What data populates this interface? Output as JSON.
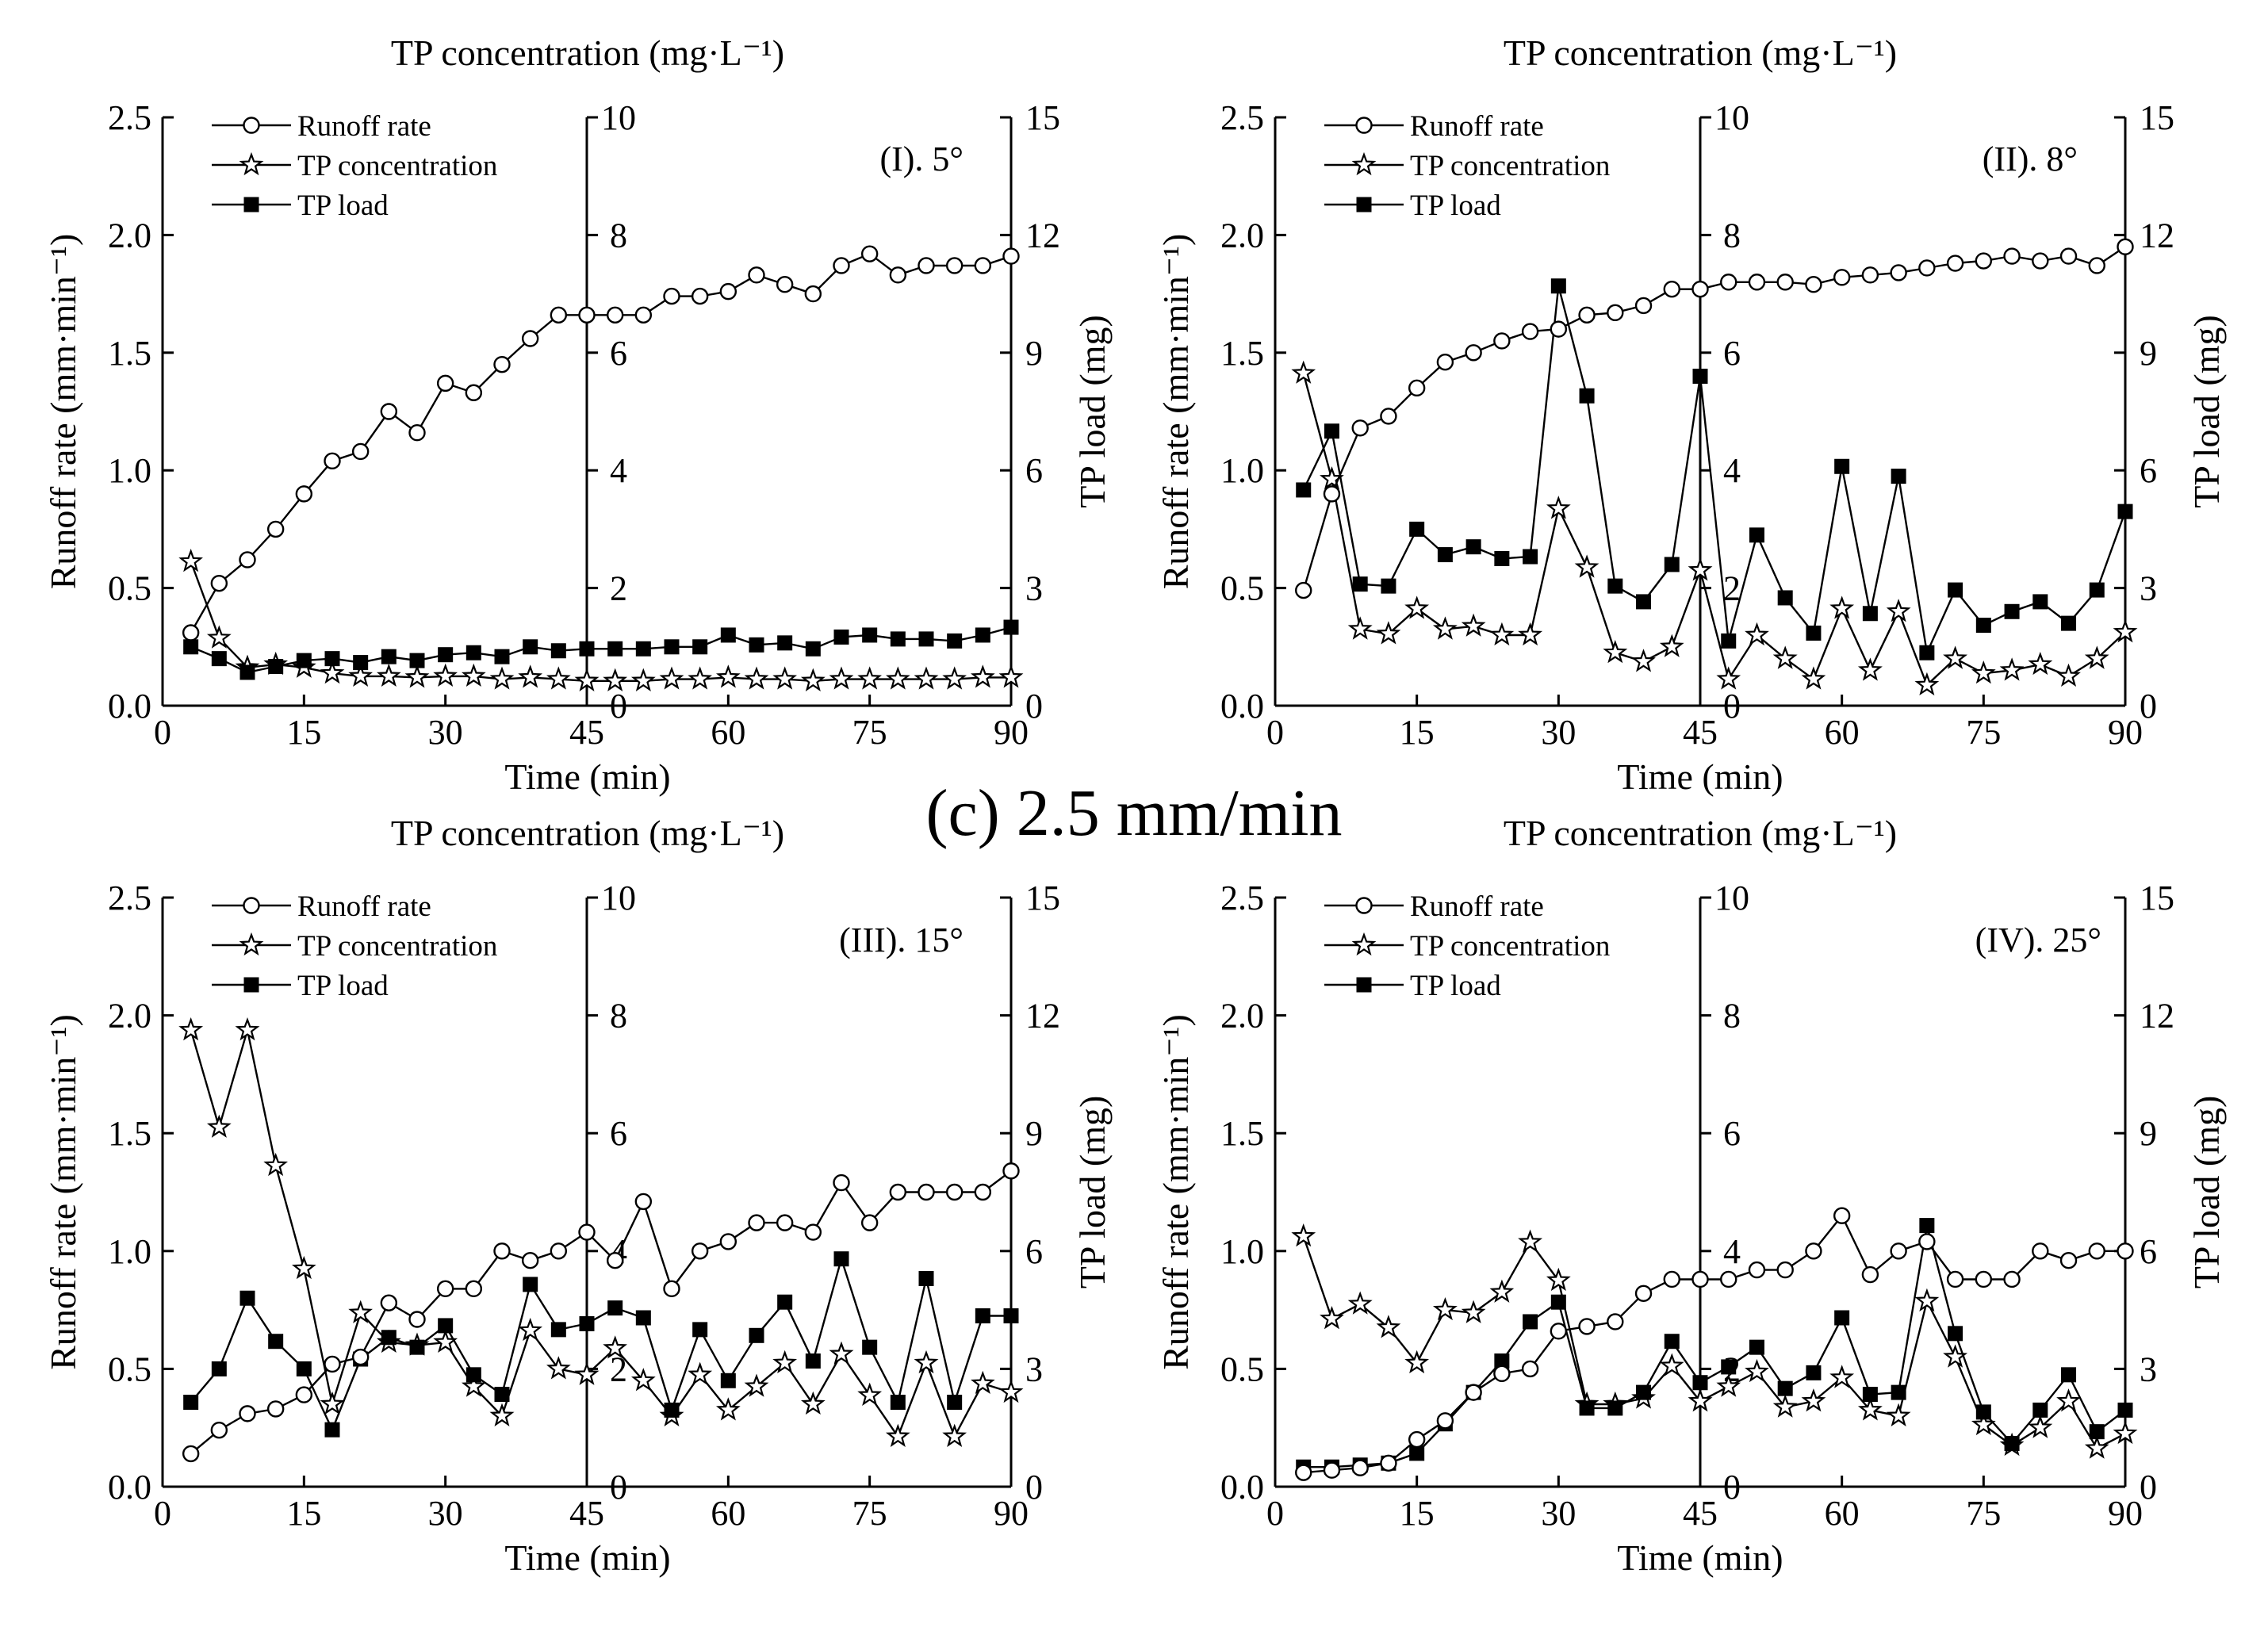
{
  "figure": {
    "title": "(c) 2.5 mm/min"
  },
  "colors": {
    "ink": "#000000",
    "paper": "#ffffff"
  },
  "chart_data": [
    {
      "type": "line",
      "panel_label": "(I). 5°",
      "title": "TP concentration (mg·L⁻¹)",
      "xlabel": "Time (min)",
      "ylabel": "Runoff rate (mm·min⁻¹)",
      "y2label": "TP load (mg)",
      "xlim": [
        0,
        90
      ],
      "xticks": [
        "0",
        "15",
        "30",
        "45",
        "60",
        "75",
        "90"
      ],
      "ylim": [
        0,
        2.5
      ],
      "yticks": [
        "0.0",
        "0.5",
        "1.0",
        "1.5",
        "2.0",
        "2.5"
      ],
      "y2lim": [
        0,
        15
      ],
      "y2ticks": [
        "0",
        "3",
        "6",
        "9",
        "12",
        "15"
      ],
      "conc_lim": [
        0,
        10
      ],
      "conc_ticks": [
        "0",
        "2",
        "4",
        "6",
        "8",
        "10"
      ],
      "legend": [
        "Runoff rate",
        "TP concentration",
        "TP load"
      ],
      "x": [
        3,
        6,
        9,
        12,
        15,
        18,
        21,
        24,
        27,
        30,
        33,
        36,
        39,
        42,
        45,
        48,
        51,
        54,
        57,
        60,
        63,
        66,
        69,
        72,
        75,
        78,
        81,
        84,
        87,
        90
      ],
      "series": [
        {
          "name": "Runoff rate",
          "marker": "circle",
          "axis": "left",
          "values": [
            0.31,
            0.52,
            0.62,
            0.75,
            0.9,
            1.04,
            1.08,
            1.25,
            1.16,
            1.37,
            1.33,
            1.45,
            1.56,
            1.66,
            1.66,
            1.66,
            1.66,
            1.74,
            1.74,
            1.76,
            1.83,
            1.79,
            1.75,
            1.87,
            1.92,
            1.83,
            1.87,
            1.87,
            1.87,
            1.91
          ]
        },
        {
          "name": "TP concentration",
          "marker": "star",
          "axis": "conc",
          "values": [
            2.45,
            1.15,
            0.65,
            0.7,
            0.65,
            0.55,
            0.5,
            0.5,
            0.48,
            0.5,
            0.5,
            0.45,
            0.48,
            0.45,
            0.42,
            0.42,
            0.42,
            0.45,
            0.45,
            0.48,
            0.45,
            0.45,
            0.42,
            0.45,
            0.45,
            0.45,
            0.45,
            0.45,
            0.48,
            0.48
          ]
        },
        {
          "name": "TP load",
          "marker": "square",
          "axis": "right",
          "values": [
            1.5,
            1.2,
            0.85,
            1.0,
            1.15,
            1.2,
            1.1,
            1.25,
            1.15,
            1.3,
            1.35,
            1.25,
            1.5,
            1.4,
            1.45,
            1.45,
            1.45,
            1.5,
            1.5,
            1.8,
            1.55,
            1.6,
            1.45,
            1.75,
            1.8,
            1.7,
            1.7,
            1.65,
            1.8,
            2.0
          ]
        }
      ]
    },
    {
      "type": "line",
      "panel_label": "(II). 8°",
      "title": "TP concentration (mg·L⁻¹)",
      "xlabel": "Time (min)",
      "ylabel": "Runoff rate (mm·min⁻¹)",
      "y2label": "TP load (mg)",
      "xlim": [
        0,
        90
      ],
      "xticks": [
        "0",
        "15",
        "30",
        "45",
        "60",
        "75",
        "90"
      ],
      "ylim": [
        0,
        2.5
      ],
      "yticks": [
        "0.0",
        "0.5",
        "1.0",
        "1.5",
        "2.0",
        "2.5"
      ],
      "y2lim": [
        0,
        15
      ],
      "y2ticks": [
        "0",
        "3",
        "6",
        "9",
        "12",
        "15"
      ],
      "conc_lim": [
        0,
        10
      ],
      "conc_ticks": [
        "0",
        "2",
        "4",
        "6",
        "8",
        "10"
      ],
      "legend": [
        "Runoff rate",
        "TP concentration",
        "TP load"
      ],
      "x": [
        3,
        6,
        9,
        12,
        15,
        18,
        21,
        24,
        27,
        30,
        33,
        36,
        39,
        42,
        45,
        48,
        51,
        54,
        57,
        60,
        63,
        66,
        69,
        72,
        75,
        78,
        81,
        84,
        87,
        90
      ],
      "series": [
        {
          "name": "Runoff rate",
          "marker": "circle",
          "axis": "left",
          "values": [
            0.49,
            0.9,
            1.18,
            1.23,
            1.35,
            1.46,
            1.5,
            1.55,
            1.59,
            1.6,
            1.66,
            1.67,
            1.7,
            1.77,
            1.77,
            1.8,
            1.8,
            1.8,
            1.79,
            1.82,
            1.83,
            1.84,
            1.86,
            1.88,
            1.89,
            1.91,
            1.89,
            1.91,
            1.87,
            1.95
          ]
        },
        {
          "name": "TP concentration",
          "marker": "star",
          "axis": "conc",
          "values": [
            5.65,
            3.85,
            1.3,
            1.22,
            1.65,
            1.3,
            1.35,
            1.2,
            1.2,
            3.35,
            2.35,
            0.9,
            0.75,
            1.0,
            2.3,
            0.45,
            1.2,
            0.8,
            0.45,
            1.65,
            0.6,
            1.6,
            0.35,
            0.8,
            0.55,
            0.6,
            0.7,
            0.5,
            0.8,
            1.25
          ]
        },
        {
          "name": "TP load",
          "marker": "square",
          "axis": "right",
          "values": [
            5.5,
            7.0,
            3.1,
            3.05,
            4.5,
            3.85,
            4.05,
            3.75,
            3.8,
            10.7,
            7.9,
            3.05,
            2.65,
            3.6,
            8.4,
            1.65,
            4.35,
            2.75,
            1.85,
            6.1,
            2.35,
            5.85,
            1.35,
            2.95,
            2.05,
            2.4,
            2.65,
            2.1,
            2.95,
            4.95
          ]
        }
      ]
    },
    {
      "type": "line",
      "panel_label": "(III). 15°",
      "title": "TP concentration (mg·L⁻¹)",
      "xlabel": "Time (min)",
      "ylabel": "Runoff rate (mm·min⁻¹)",
      "y2label": "TP load (mg)",
      "xlim": [
        0,
        90
      ],
      "xticks": [
        "0",
        "15",
        "30",
        "45",
        "60",
        "75",
        "90"
      ],
      "ylim": [
        0,
        2.5
      ],
      "yticks": [
        "0.0",
        "0.5",
        "1.0",
        "1.5",
        "2.0",
        "2.5"
      ],
      "y2lim": [
        0,
        15
      ],
      "y2ticks": [
        "0",
        "3",
        "6",
        "9",
        "12",
        "15"
      ],
      "conc_lim": [
        0,
        10
      ],
      "conc_ticks": [
        "0",
        "2",
        "4",
        "6",
        "8",
        "10"
      ],
      "legend": [
        "Runoff rate",
        "TP concentration",
        "TP load"
      ],
      "x": [
        3,
        6,
        9,
        12,
        15,
        18,
        21,
        24,
        27,
        30,
        33,
        36,
        39,
        42,
        45,
        48,
        51,
        54,
        57,
        60,
        63,
        66,
        69,
        72,
        75,
        78,
        81,
        84,
        87,
        90
      ],
      "series": [
        {
          "name": "Runoff rate",
          "marker": "circle",
          "axis": "left",
          "values": [
            0.14,
            0.24,
            0.31,
            0.33,
            0.39,
            0.52,
            0.55,
            0.78,
            0.71,
            0.84,
            0.84,
            1.0,
            0.96,
            1.0,
            1.08,
            0.96,
            1.21,
            0.84,
            1.0,
            1.04,
            1.12,
            1.12,
            1.08,
            1.29,
            1.12,
            1.25,
            1.25,
            1.25,
            1.25,
            1.34
          ]
        },
        {
          "name": "TP concentration",
          "marker": "star",
          "axis": "conc",
          "values": [
            7.75,
            6.1,
            7.75,
            5.45,
            3.7,
            1.4,
            2.95,
            2.45,
            2.4,
            2.45,
            1.7,
            1.2,
            2.65,
            2.0,
            1.9,
            2.35,
            1.8,
            1.2,
            1.9,
            1.3,
            1.7,
            2.1,
            1.4,
            2.25,
            1.55,
            0.85,
            2.1,
            0.85,
            1.75,
            1.6
          ]
        },
        {
          "name": "TP load",
          "marker": "square",
          "axis": "right",
          "values": [
            2.15,
            3.0,
            4.8,
            3.7,
            3.0,
            1.45,
            3.25,
            3.8,
            3.55,
            4.1,
            2.85,
            2.35,
            5.15,
            4.0,
            4.15,
            4.55,
            4.3,
            1.95,
            4.0,
            2.7,
            3.85,
            4.7,
            3.2,
            5.8,
            3.55,
            2.15,
            5.3,
            2.15,
            4.35,
            4.35
          ]
        }
      ]
    },
    {
      "type": "line",
      "panel_label": "(IV). 25°",
      "title": "TP concentration (mg·L⁻¹)",
      "xlabel": "Time (min)",
      "ylabel": "Runoff rate (mm·min⁻¹)",
      "y2label": "TP load (mg)",
      "xlim": [
        0,
        90
      ],
      "xticks": [
        "0",
        "15",
        "30",
        "45",
        "60",
        "75",
        "90"
      ],
      "ylim": [
        0,
        2.5
      ],
      "yticks": [
        "0.0",
        "0.5",
        "1.0",
        "1.5",
        "2.0",
        "2.5"
      ],
      "y2lim": [
        0,
        15
      ],
      "y2ticks": [
        "0",
        "3",
        "6",
        "9",
        "12",
        "15"
      ],
      "conc_lim": [
        0,
        10
      ],
      "conc_ticks": [
        "0",
        "2",
        "4",
        "6",
        "8",
        "10"
      ],
      "legend": [
        "Runoff rate",
        "TP concentration",
        "TP load"
      ],
      "x": [
        3,
        6,
        9,
        12,
        15,
        18,
        21,
        24,
        27,
        30,
        33,
        36,
        39,
        42,
        45,
        48,
        51,
        54,
        57,
        60,
        63,
        66,
        69,
        72,
        75,
        78,
        81,
        84,
        87,
        90
      ],
      "series": [
        {
          "name": "Runoff rate",
          "marker": "circle",
          "axis": "left",
          "values": [
            0.06,
            0.07,
            0.08,
            0.1,
            0.2,
            0.28,
            0.4,
            0.48,
            0.5,
            0.66,
            0.68,
            0.7,
            0.82,
            0.88,
            0.88,
            0.88,
            0.92,
            0.92,
            1.0,
            1.15,
            0.9,
            1.0,
            1.04,
            0.88,
            0.88,
            0.88,
            1.0,
            0.96,
            1.0,
            1.0
          ]
        },
        {
          "name": "TP concentration",
          "marker": "star",
          "axis": "conc",
          "values": [
            4.25,
            2.85,
            3.1,
            2.7,
            2.1,
            3.0,
            2.95,
            3.3,
            4.15,
            3.5,
            1.4,
            1.4,
            1.5,
            2.05,
            1.45,
            1.7,
            1.95,
            1.35,
            1.45,
            1.85,
            1.3,
            1.2,
            3.15,
            2.2,
            1.05,
            0.7,
            1.0,
            1.45,
            0.65,
            0.9
          ]
        },
        {
          "name": "TP load",
          "marker": "square",
          "axis": "right",
          "values": [
            0.5,
            0.5,
            0.55,
            0.6,
            0.85,
            1.6,
            2.4,
            3.2,
            4.2,
            4.7,
            2.0,
            2.0,
            2.4,
            3.7,
            2.65,
            3.05,
            3.55,
            2.5,
            2.9,
            4.3,
            2.35,
            2.4,
            6.65,
            3.9,
            1.9,
            1.1,
            1.95,
            2.85,
            1.4,
            1.95
          ]
        }
      ]
    }
  ]
}
